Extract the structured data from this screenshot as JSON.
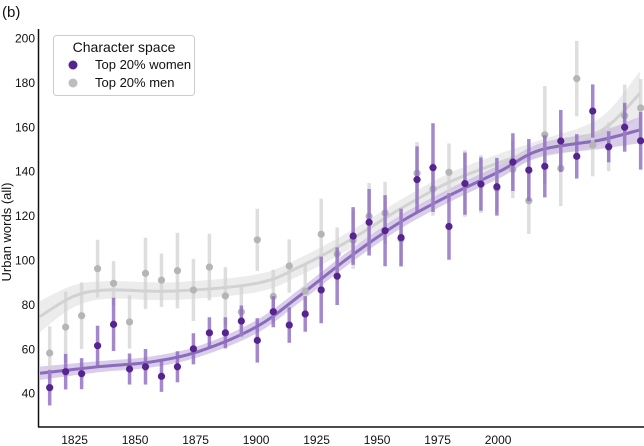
{
  "chart_data": {
    "type": "scatter",
    "panel_label": "(b)",
    "title": "",
    "xlabel": "",
    "ylabel": "Urban words (all)",
    "xlim": [
      1810,
      2060
    ],
    "ylim": [
      25,
      204
    ],
    "xticks": [
      1825,
      1850,
      1875,
      1900,
      1925,
      1950,
      1975,
      2000
    ],
    "yticks": [
      40,
      60,
      80,
      100,
      120,
      140,
      160,
      180,
      200
    ],
    "grid": false,
    "legend": {
      "title": "Character space",
      "placement": "top-left"
    },
    "x": [
      1814.7,
      1821.3,
      1827.9,
      1834.5,
      1841.1,
      1847.7,
      1854.3,
      1860.9,
      1867.5,
      1874.1,
      1880.7,
      1887.3,
      1893.9,
      1900.5,
      1907.1,
      1913.7,
      1920.3,
      1926.9,
      1933.5,
      1940.1,
      1946.7,
      1953.3,
      1959.9,
      1966.5,
      1973.1,
      1979.7,
      1986.3,
      1992.9,
      1999.5,
      2006.1,
      2012.7,
      2019.3,
      2025.9,
      2032.5,
      2039.1,
      2045.7,
      2052.3,
      2058.9
    ],
    "series": [
      {
        "name": "Top 20% men",
        "color": "#b5b5b5",
        "bar_color": "#d3d3d3",
        "values": [
          58.1,
          69.8,
          74.9,
          96.1,
          89.5,
          72.1,
          94.0,
          90.9,
          95.2,
          86.5,
          96.8,
          83.8,
          76.6,
          109.1,
          83.6,
          97.3,
          86.0,
          111.6,
          102.7,
          109.0,
          119.7,
          121.2,
          109.5,
          139.1,
          132.0,
          139.5,
          134.5,
          134.2,
          132.3,
          140.9,
          126.7,
          156.4,
          141.3,
          181.7,
          151.7,
          151.0,
          165.0,
          168.5
        ],
        "error": [
          12,
          16,
          15,
          13,
          10,
          12,
          16,
          12,
          17,
          14,
          15,
          13,
          12,
          14,
          12,
          12,
          12,
          16,
          12,
          13,
          15,
          14,
          12,
          14,
          12,
          13,
          15,
          13,
          11,
          13,
          15,
          22,
          17,
          17,
          14,
          11,
          14,
          13
        ],
        "trend": {
          "x": [
            1810.7,
            1824.3,
            1838.3,
            1865.6,
            1900.3,
            1918.1,
            1938.8,
            1959.5,
            1979.7,
            2000.8,
            2017.3,
            2042.1,
            2058.6
          ],
          "y": [
            74.5,
            83.5,
            86.5,
            86.0,
            89.5,
            97.0,
            109.0,
            123.0,
            135.0,
            144.0,
            150.0,
            158.0,
            175.0
          ],
          "band": [
            7,
            5,
            4,
            4,
            4,
            4,
            4,
            4,
            4,
            4,
            4,
            6,
            10
          ]
        }
      },
      {
        "name": "Top 20% women",
        "color": "#55248f",
        "bar_color": "#8d6bbf",
        "values": [
          42.5,
          49.7,
          48.8,
          61.4,
          71.0,
          50.9,
          51.9,
          47.6,
          51.9,
          60.0,
          67.2,
          67.2,
          72.5,
          63.8,
          76.7,
          70.7,
          75.7,
          86.5,
          92.7,
          110.8,
          117.0,
          113.2,
          110.1,
          136.2,
          141.6,
          115.1,
          134.4,
          134.2,
          133.0,
          144.1,
          140.5,
          142.2,
          153.6,
          146.7,
          167.1,
          151.0,
          159.8,
          153.7
        ],
        "error": [
          8,
          8,
          7,
          9,
          12,
          7,
          8,
          7,
          7,
          7,
          7,
          7,
          7,
          10,
          7,
          8,
          8,
          15,
          13,
          13,
          15,
          16,
          13,
          15,
          20,
          15,
          14,
          12,
          13,
          13,
          14,
          14,
          14,
          10,
          12,
          7,
          11,
          13
        ],
        "trend": {
          "x": [
            1810.7,
            1835.5,
            1856.1,
            1876.8,
            1900.3,
            1918.1,
            1938.8,
            1959.5,
            1979.7,
            2000.8,
            2017.3,
            2042.1,
            2058.6
          ],
          "y": [
            49.0,
            52.0,
            54.0,
            59.0,
            70.0,
            84.0,
            101.5,
            117.0,
            129.0,
            140.0,
            149.5,
            154.0,
            158.6
          ],
          "band": [
            3,
            2.5,
            2.5,
            2.5,
            3,
            3,
            3,
            3,
            3,
            3,
            3,
            4,
            6
          ]
        }
      }
    ]
  }
}
